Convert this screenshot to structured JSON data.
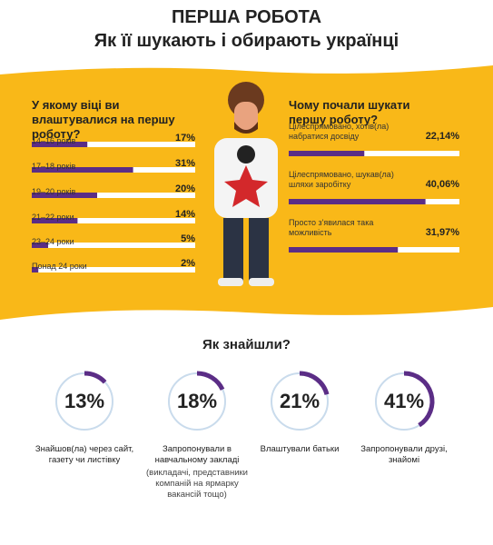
{
  "header": {
    "title": "ПЕРША РОБОТА",
    "subtitle": "Як її шукають і обирають українці"
  },
  "chart_data": [
    {
      "type": "hbar",
      "title": "У якому віці ви влаштувалися на першу роботу?",
      "categories": [
        "14–16 років",
        "17–18 років",
        "19–20 років",
        "21–22 роки",
        "23–24 роки",
        "Понад 24 роки"
      ],
      "values": [
        17,
        31,
        20,
        14,
        5,
        2
      ],
      "value_labels": [
        "17%",
        "31%",
        "20%",
        "14%",
        "5%",
        "2%"
      ],
      "xlim": [
        0,
        50
      ],
      "color": "#5b2d86"
    },
    {
      "type": "hbar",
      "title": "Чому почали шукати першу роботу?",
      "categories": [
        "Цілеспрямовано, хотів(ла) набратися досвіду",
        "Цілеспрямовано, шукав(ла) шляхи заробітку",
        "Просто з'явилася така можливість"
      ],
      "values": [
        22.14,
        40.06,
        31.97
      ],
      "value_labels": [
        "22,14%",
        "40,06%",
        "31,97%"
      ],
      "xlim": [
        0,
        50
      ],
      "color": "#5b2d86"
    },
    {
      "type": "donut",
      "title": "Як знайшли?",
      "categories": [
        "Знайшов(ла) через сайт, газету чи листівку",
        "Запропонували в навчальному закладі",
        "Влаштували батьки",
        "Запропонували друзі, знайомі"
      ],
      "notes": [
        null,
        "(викладачі, представники компаній на ярмарку вакансій тощо)",
        null,
        null
      ],
      "values": [
        13,
        18,
        21,
        41
      ],
      "value_labels": [
        "13%",
        "18%",
        "21%",
        "41%"
      ],
      "color": "#5b2d86",
      "track_color": "#c9dbec"
    }
  ]
}
